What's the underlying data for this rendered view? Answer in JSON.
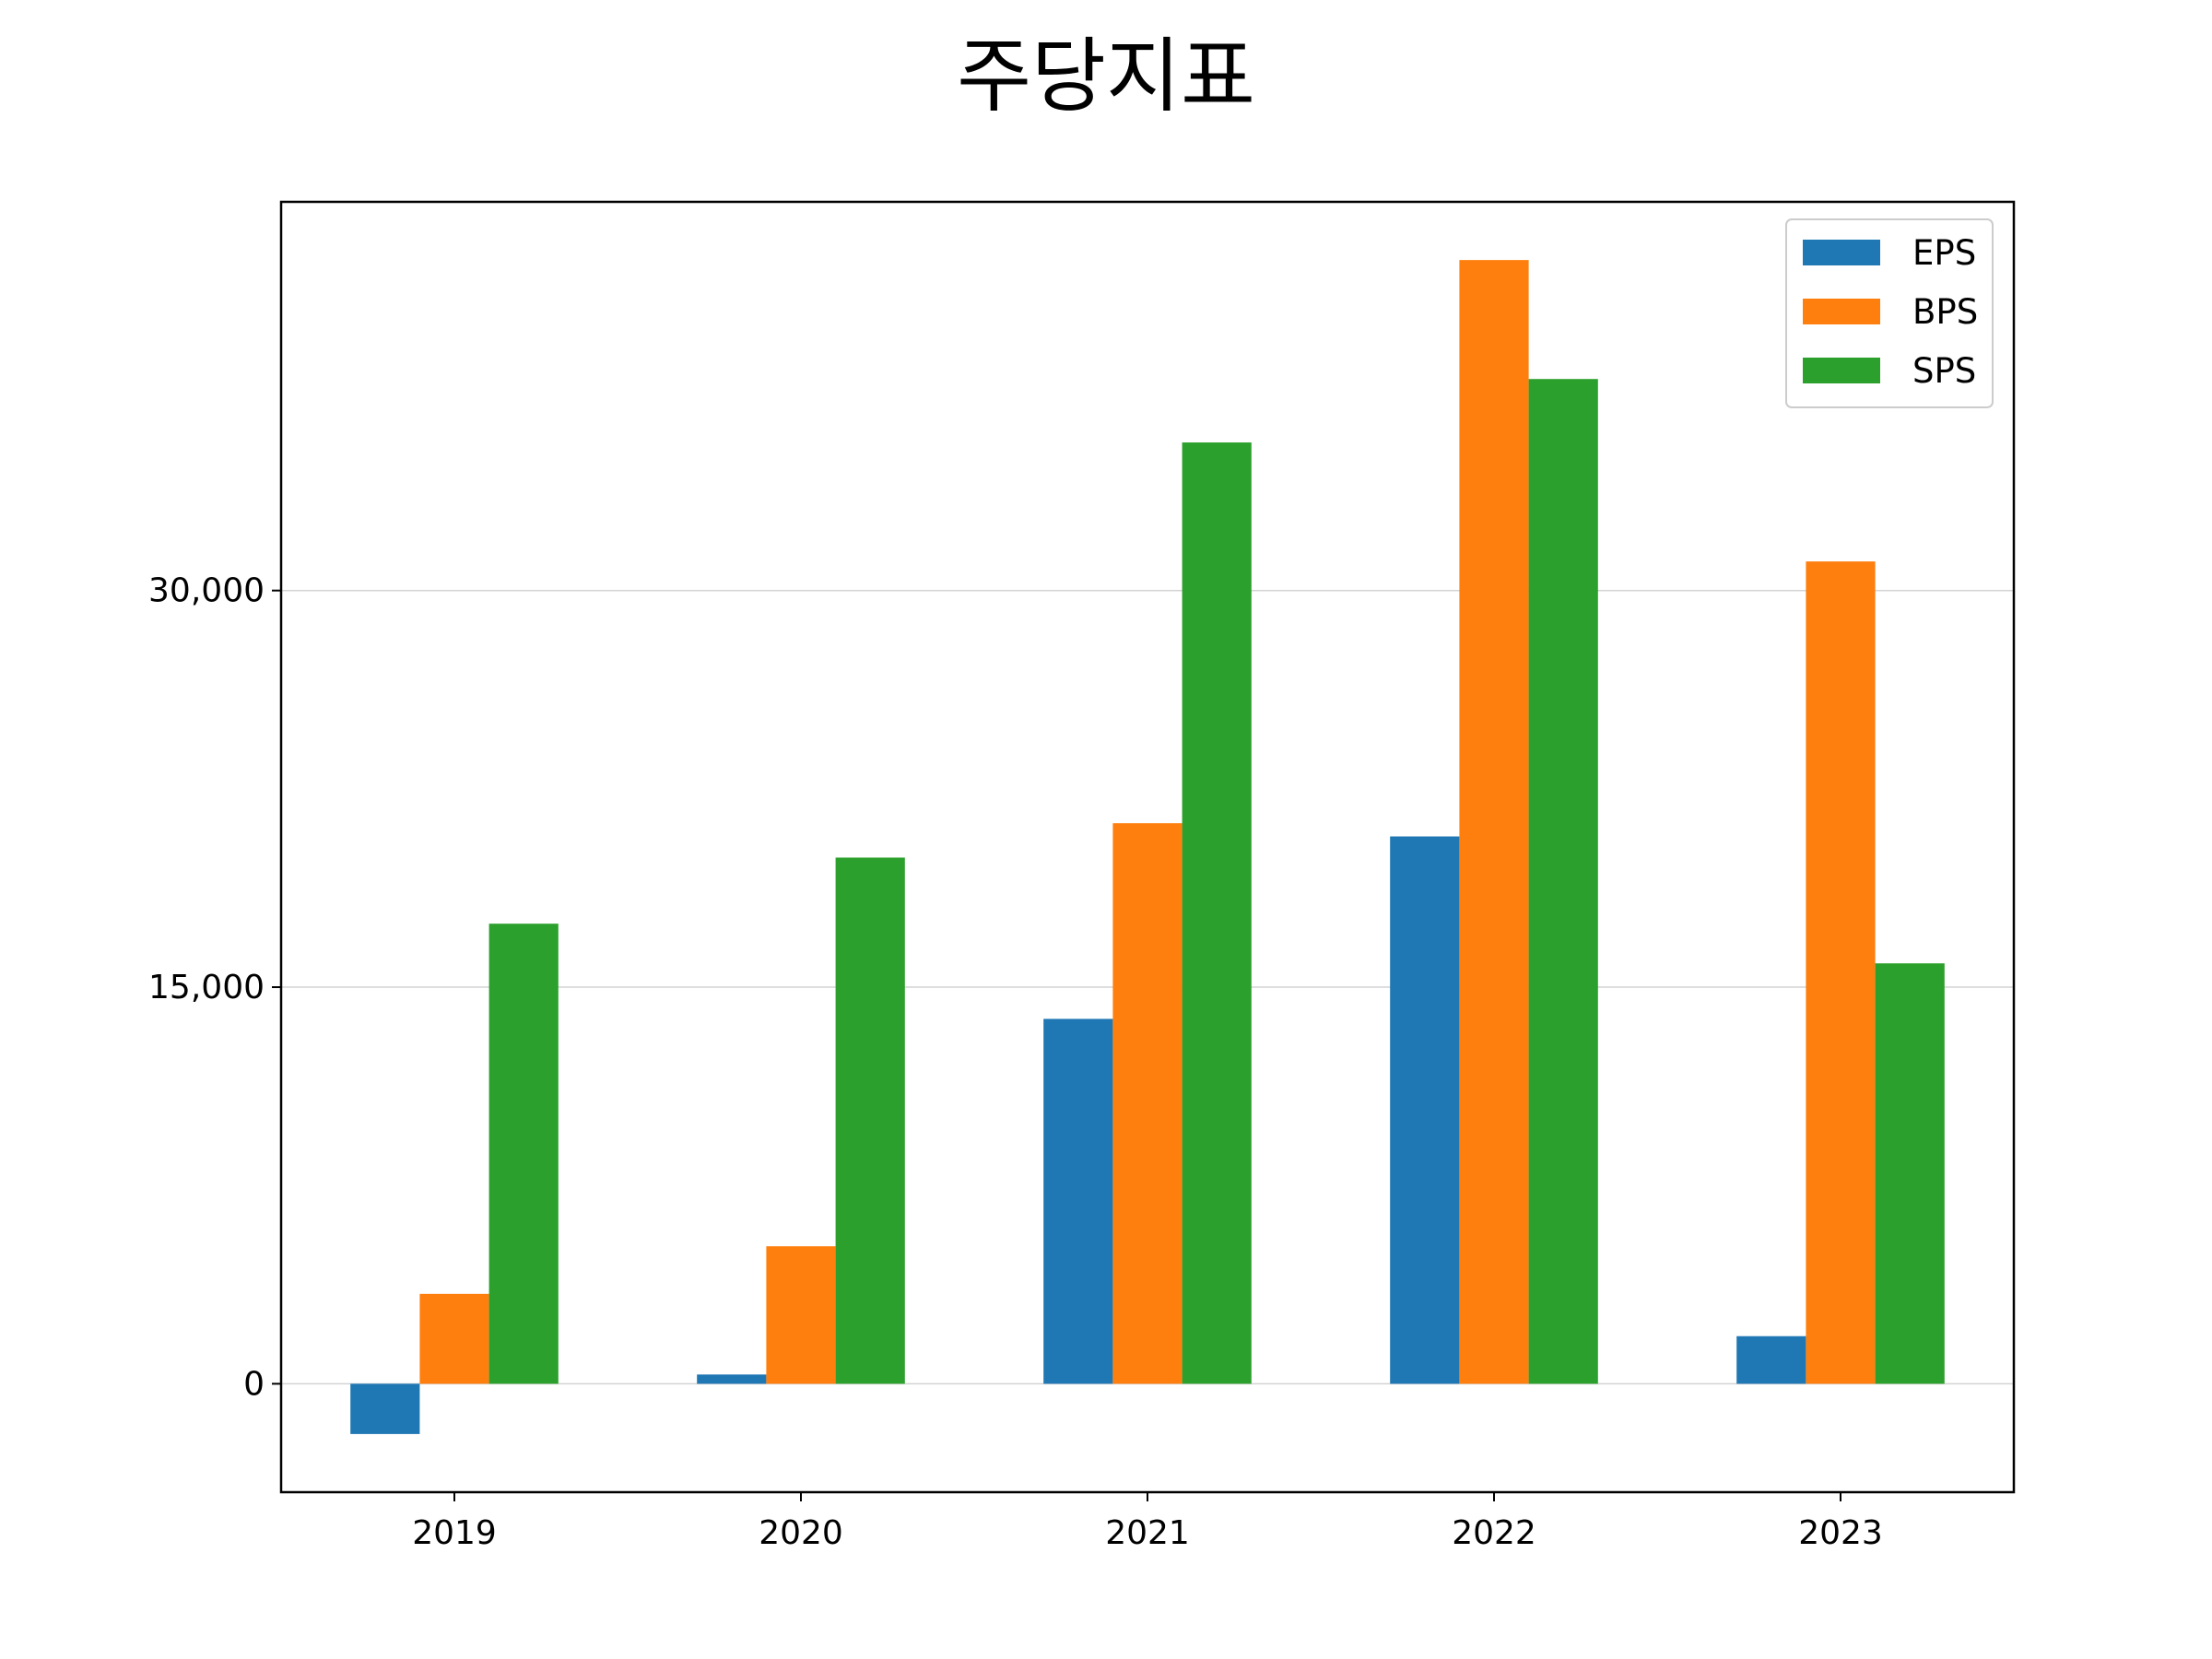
{
  "chart_data": {
    "type": "bar",
    "title": "주당지표",
    "categories": [
      "2019",
      "2020",
      "2021",
      "2022",
      "2023"
    ],
    "series": [
      {
        "name": "EPS",
        "color": "#1f77b4",
        "values": [
          -1900,
          350,
          13800,
          20700,
          1800
        ]
      },
      {
        "name": "BPS",
        "color": "#ff7f0e",
        "values": [
          3400,
          5200,
          21200,
          42500,
          31100
        ]
      },
      {
        "name": "SPS",
        "color": "#2ca02c",
        "values": [
          17400,
          19900,
          35600,
          38000,
          15900
        ]
      }
    ],
    "ylim": [
      -4100,
      44700
    ],
    "yticks": [
      0,
      15000,
      30000
    ],
    "ytick_labels": [
      "0",
      "15,000",
      "30,000"
    ],
    "grid": "horizontal",
    "legend": "top-right",
    "xlabel": "",
    "ylabel": ""
  }
}
